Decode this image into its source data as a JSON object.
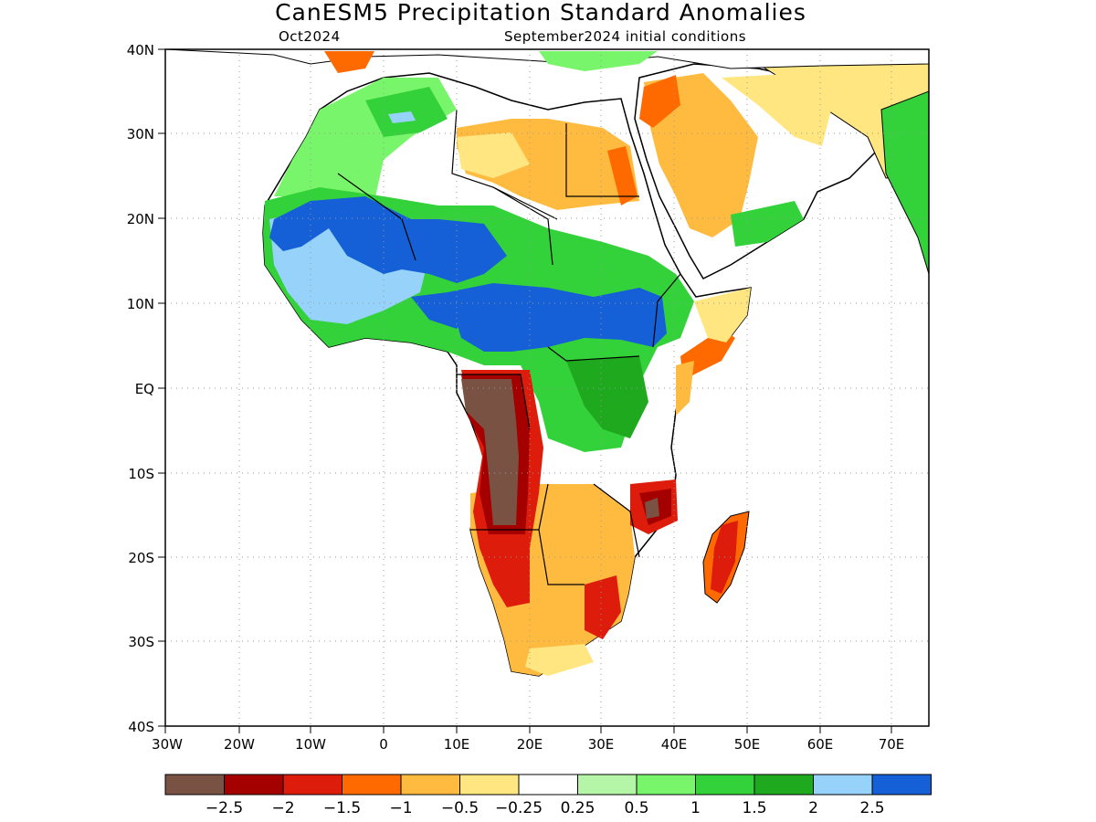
{
  "title": "CanESM5 Precipitation Standard Anomalies",
  "subtitle_left": "Oct2024",
  "subtitle_right": "September2024 initial conditions",
  "axes": {
    "lon_ticks": [
      "30W",
      "20W",
      "10W",
      "0",
      "10E",
      "20E",
      "30E",
      "40E",
      "50E",
      "60E",
      "70E"
    ],
    "lat_ticks": [
      "40N",
      "30N",
      "20N",
      "10N",
      "EQ",
      "10S",
      "20S",
      "30S",
      "40S"
    ],
    "lon_range": [
      -30,
      75
    ],
    "lat_range": [
      -40,
      40
    ],
    "grid": "dotted"
  },
  "colorbar": {
    "colors": [
      "#7a5243",
      "#a50000",
      "#dd1c0c",
      "#ff6a00",
      "#ffbb40",
      "#ffe680",
      "#ffffff",
      "#b4f5a8",
      "#78f56a",
      "#34d23a",
      "#1fa91f",
      "#96d2fa",
      "#1560d6"
    ],
    "labels": [
      "−2.5",
      "−2",
      "−1.5",
      "−1",
      "−0.5",
      "−0.25",
      "0.25",
      "0.5",
      "1",
      "1.5",
      "2",
      "2.5"
    ]
  },
  "regions": {
    "sahel_wet_band": "2.5",
    "angola_dry": "-2.5",
    "madagascar_dry": "-1.5",
    "arabia_dry": "-0.5",
    "east_africa_horn_dry": "-1"
  }
}
